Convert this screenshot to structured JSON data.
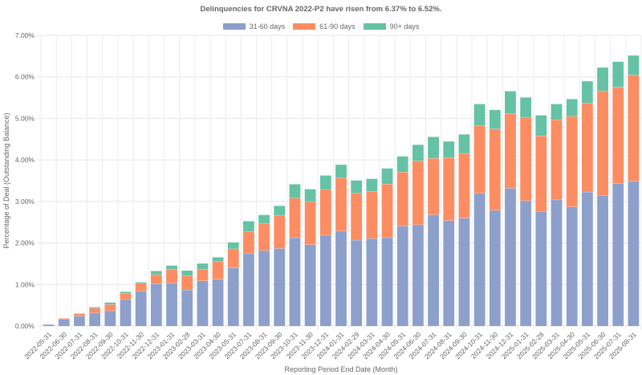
{
  "chart_data": {
    "type": "bar",
    "stacked": true,
    "title": "Delinquencies for CRVNA 2022-P2 have risen from 6.37% to 6.52%.",
    "xlabel": "Reporting Period End Date (Month)",
    "ylabel": "Percentage of Deal (Outstanding Balance)",
    "ylim": [
      0,
      7
    ],
    "yticks": [
      "0.00%",
      "1.00%",
      "2.00%",
      "3.00%",
      "4.00%",
      "5.00%",
      "6.00%",
      "7.00%"
    ],
    "grid": true,
    "legend_position": "top",
    "categories": [
      "2022-05-31",
      "2022-06-30",
      "2022-07-31",
      "2022-08-31",
      "2022-09-30",
      "2022-10-31",
      "2022-11-30",
      "2022-12-31",
      "2023-01-31",
      "2023-02-28",
      "2023-03-31",
      "2023-04-30",
      "2023-05-31",
      "2023-07-31",
      "2023-08-31",
      "2023-09-30",
      "2023-10-31",
      "2023-11-30",
      "2023-12-31",
      "2024-01-31",
      "2024-02-29",
      "2024-03-31",
      "2024-04-30",
      "2024-05-31",
      "2024-06-30",
      "2024-07-31",
      "2024-08-31",
      "2024-09-30",
      "2024-10-31",
      "2024-11-30",
      "2024-12-31",
      "2025-01-31",
      "2025-02-28",
      "2025-03-31",
      "2025-04-30",
      "2025-05-31",
      "2025-06-30",
      "2025-07-31",
      "2025-08-31"
    ],
    "series": [
      {
        "name": "31-60 days",
        "color": "#8da0cb",
        "values": [
          0.04,
          0.17,
          0.24,
          0.32,
          0.37,
          0.64,
          0.84,
          1.02,
          1.04,
          0.87,
          1.09,
          1.13,
          1.4,
          1.75,
          1.82,
          1.87,
          2.13,
          1.96,
          2.19,
          2.29,
          2.07,
          2.11,
          2.13,
          2.41,
          2.44,
          2.68,
          2.54,
          2.6,
          3.2,
          2.79,
          3.32,
          3.02,
          2.76,
          3.04,
          2.87,
          3.23,
          3.15,
          3.44,
          3.49
        ]
      },
      {
        "name": "61-90 days",
        "color": "#fc8d62",
        "values": [
          0.0,
          0.02,
          0.06,
          0.11,
          0.15,
          0.15,
          0.19,
          0.22,
          0.32,
          0.34,
          0.28,
          0.43,
          0.46,
          0.53,
          0.65,
          0.8,
          0.95,
          1.04,
          1.1,
          1.28,
          1.13,
          1.13,
          1.29,
          1.3,
          1.54,
          1.36,
          1.52,
          1.56,
          1.63,
          1.96,
          1.8,
          2.01,
          1.82,
          1.93,
          2.18,
          2.14,
          2.51,
          2.32,
          2.56
        ]
      },
      {
        "name": "90+ days",
        "color": "#66c2a5",
        "values": [
          0.0,
          0.0,
          0.01,
          0.03,
          0.05,
          0.04,
          0.03,
          0.09,
          0.1,
          0.13,
          0.14,
          0.1,
          0.16,
          0.25,
          0.21,
          0.23,
          0.34,
          0.3,
          0.34,
          0.32,
          0.31,
          0.31,
          0.38,
          0.38,
          0.39,
          0.52,
          0.39,
          0.46,
          0.52,
          0.46,
          0.54,
          0.48,
          0.5,
          0.38,
          0.42,
          0.53,
          0.57,
          0.61,
          0.47
        ]
      }
    ]
  }
}
